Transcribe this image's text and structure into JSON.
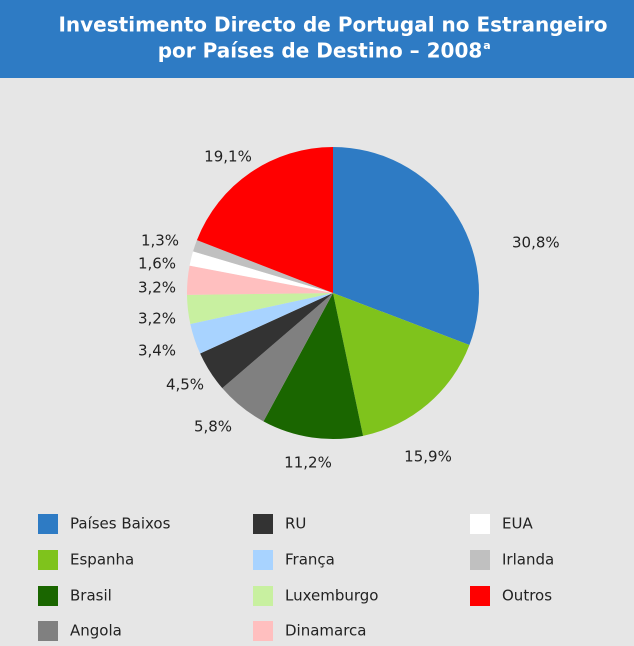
{
  "chart_data": {
    "type": "pie",
    "title": [
      "Investimento Directo de Portugal no Estrangeiro",
      "por Países de Destino – 2008"
    ],
    "title_superscript": "a",
    "categories": [
      "Países Baixos",
      "Espanha",
      "Brasil",
      "Angola",
      "RU",
      "França",
      "Luxemburgo",
      "Dinamarca",
      "EUA",
      "Irlanda",
      "Outros"
    ],
    "values": [
      30.8,
      15.9,
      11.2,
      5.8,
      4.5,
      3.4,
      3.2,
      3.2,
      1.6,
      1.3,
      19.1
    ],
    "value_labels": [
      "30,8%",
      "15,9%",
      "11,2%",
      "5,8%",
      "4,5%",
      "3,4%",
      "3,2%",
      "3,2%",
      "1,6%",
      "1,3%",
      "19,1%"
    ],
    "colors": [
      "#2e7bc4",
      "#7fc31c",
      "#1a6600",
      "#808080",
      "#333333",
      "#a8d3ff",
      "#c8f0a0",
      "#ffbfbf",
      "#ffffff",
      "#c0c0c0",
      "#ff0000"
    ]
  }
}
